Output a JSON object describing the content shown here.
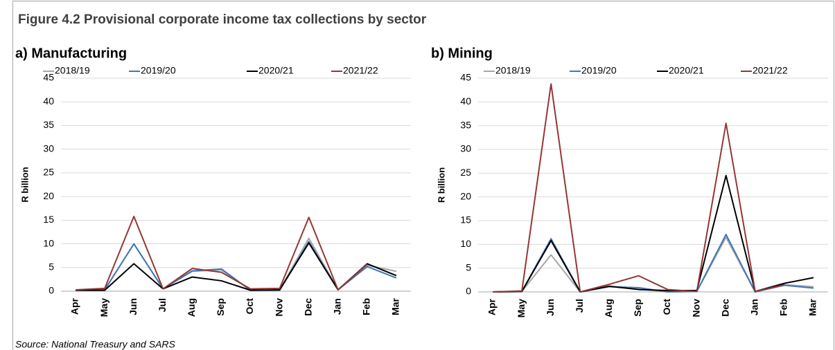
{
  "title": "Figure 4.2 Provisional corporate income tax collections by sector",
  "source": "Source: National Treasury and SARS",
  "chart_data": [
    {
      "type": "line",
      "title": "a) Manufacturing",
      "y_label": "R billion",
      "categories": [
        "Apr",
        "May",
        "Jun",
        "Jul",
        "Aug",
        "Sep",
        "Oct",
        "Nov",
        "Dec",
        "Jan",
        "Feb",
        "Mar"
      ],
      "series": [
        {
          "name": "2018/19",
          "color": "#a6a6a6",
          "values": [
            0.2,
            0.3,
            10,
            0.5,
            4.2,
            4.5,
            0.2,
            0.3,
            11.2,
            0.3,
            5.5,
            4.2
          ]
        },
        {
          "name": "2019/20",
          "color": "#3f76b6",
          "values": [
            0.2,
            0.3,
            10,
            0.5,
            4.3,
            4.7,
            0.2,
            0.2,
            10.5,
            0.3,
            5.2,
            2.8
          ]
        },
        {
          "name": "2020/21",
          "color": "#000000",
          "values": [
            0.2,
            0.2,
            5.8,
            0.5,
            3.0,
            2.2,
            0.2,
            0.3,
            10.2,
            0.3,
            5.8,
            3.3
          ]
        },
        {
          "name": "2021/22",
          "color": "#943634",
          "values": [
            0.3,
            0.6,
            15.8,
            0.5,
            4.8,
            4.0,
            0.5,
            0.6,
            15.6,
            0.3,
            5.7,
            null
          ]
        }
      ],
      "ylim": [
        0,
        45
      ],
      "yticks": [
        0,
        5,
        10,
        15,
        20,
        25,
        30,
        35,
        40,
        45
      ],
      "grid": true
    },
    {
      "type": "line",
      "title": "b) Mining",
      "y_label": "R billion",
      "categories": [
        "Apr",
        "May",
        "Jun",
        "Jul",
        "Aug",
        "Sep",
        "Oct",
        "Nov",
        "Dec",
        "Jan",
        "Feb",
        "Mar"
      ],
      "series": [
        {
          "name": "2018/19",
          "color": "#a6a6a6",
          "values": [
            0,
            0.1,
            7.8,
            0,
            1.1,
            0.6,
            0,
            0.1,
            11.5,
            0,
            1.5,
            1.1
          ]
        },
        {
          "name": "2019/20",
          "color": "#3f76b6",
          "values": [
            0,
            0.1,
            11.2,
            0,
            1.1,
            0.9,
            0,
            0.1,
            12.1,
            0,
            1.4,
            0.8
          ]
        },
        {
          "name": "2020/21",
          "color": "#000000",
          "values": [
            0,
            0.1,
            10.8,
            0,
            1.2,
            0.5,
            0.3,
            0.3,
            24.5,
            0.1,
            1.8,
            3.0
          ]
        },
        {
          "name": "2021/22",
          "color": "#943634",
          "values": [
            0,
            0.2,
            43.8,
            0,
            1.6,
            3.4,
            0.5,
            0.1,
            35.5,
            0.1,
            1.5,
            null
          ]
        }
      ],
      "ylim": [
        0,
        45
      ],
      "yticks": [
        0,
        5,
        10,
        15,
        20,
        25,
        30,
        35,
        40,
        45
      ],
      "grid": true
    }
  ]
}
